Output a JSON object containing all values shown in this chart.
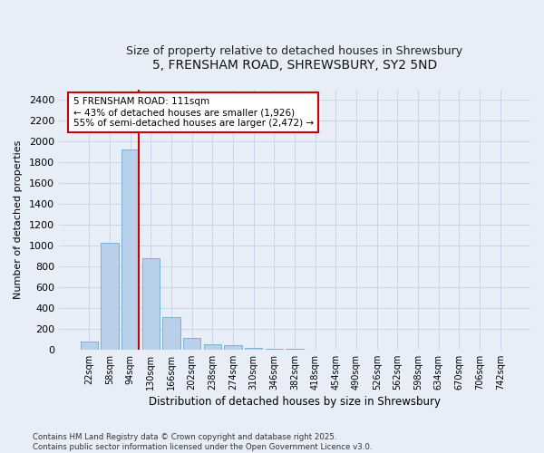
{
  "title_line1": "5, FRENSHAM ROAD, SHREWSBURY, SY2 5ND",
  "title_line2": "Size of property relative to detached houses in Shrewsbury",
  "xlabel": "Distribution of detached houses by size in Shrewsbury",
  "ylabel": "Number of detached properties",
  "categories": [
    "22sqm",
    "58sqm",
    "94sqm",
    "130sqm",
    "166sqm",
    "202sqm",
    "238sqm",
    "274sqm",
    "310sqm",
    "346sqm",
    "382sqm",
    "418sqm",
    "454sqm",
    "490sqm",
    "526sqm",
    "562sqm",
    "598sqm",
    "634sqm",
    "670sqm",
    "706sqm",
    "742sqm"
  ],
  "values": [
    80,
    1030,
    1920,
    880,
    310,
    110,
    55,
    45,
    20,
    10,
    5,
    0,
    0,
    0,
    0,
    0,
    0,
    0,
    0,
    0,
    0
  ],
  "bar_color": "#b8d0ea",
  "bar_edge_color": "#6aaad4",
  "red_line_bin_index": 2,
  "annotation_text": "5 FRENSHAM ROAD: 111sqm\n← 43% of detached houses are smaller (1,926)\n55% of semi-detached houses are larger (2,472) →",
  "annotation_box_color": "#ffffff",
  "annotation_box_edge_color": "#cc0000",
  "red_line_color": "#cc0000",
  "ylim_max": 2500,
  "yticks": [
    0,
    200,
    400,
    600,
    800,
    1000,
    1200,
    1400,
    1600,
    1800,
    2000,
    2200,
    2400
  ],
  "grid_color": "#c8d4e8",
  "bg_color": "#e8eef8",
  "footer_text": "Contains HM Land Registry data © Crown copyright and database right 2025.\nContains public sector information licensed under the Open Government Licence v3.0.",
  "title_fontsize": 10,
  "subtitle_fontsize": 9,
  "ylabel_text": "Number of detached properties"
}
